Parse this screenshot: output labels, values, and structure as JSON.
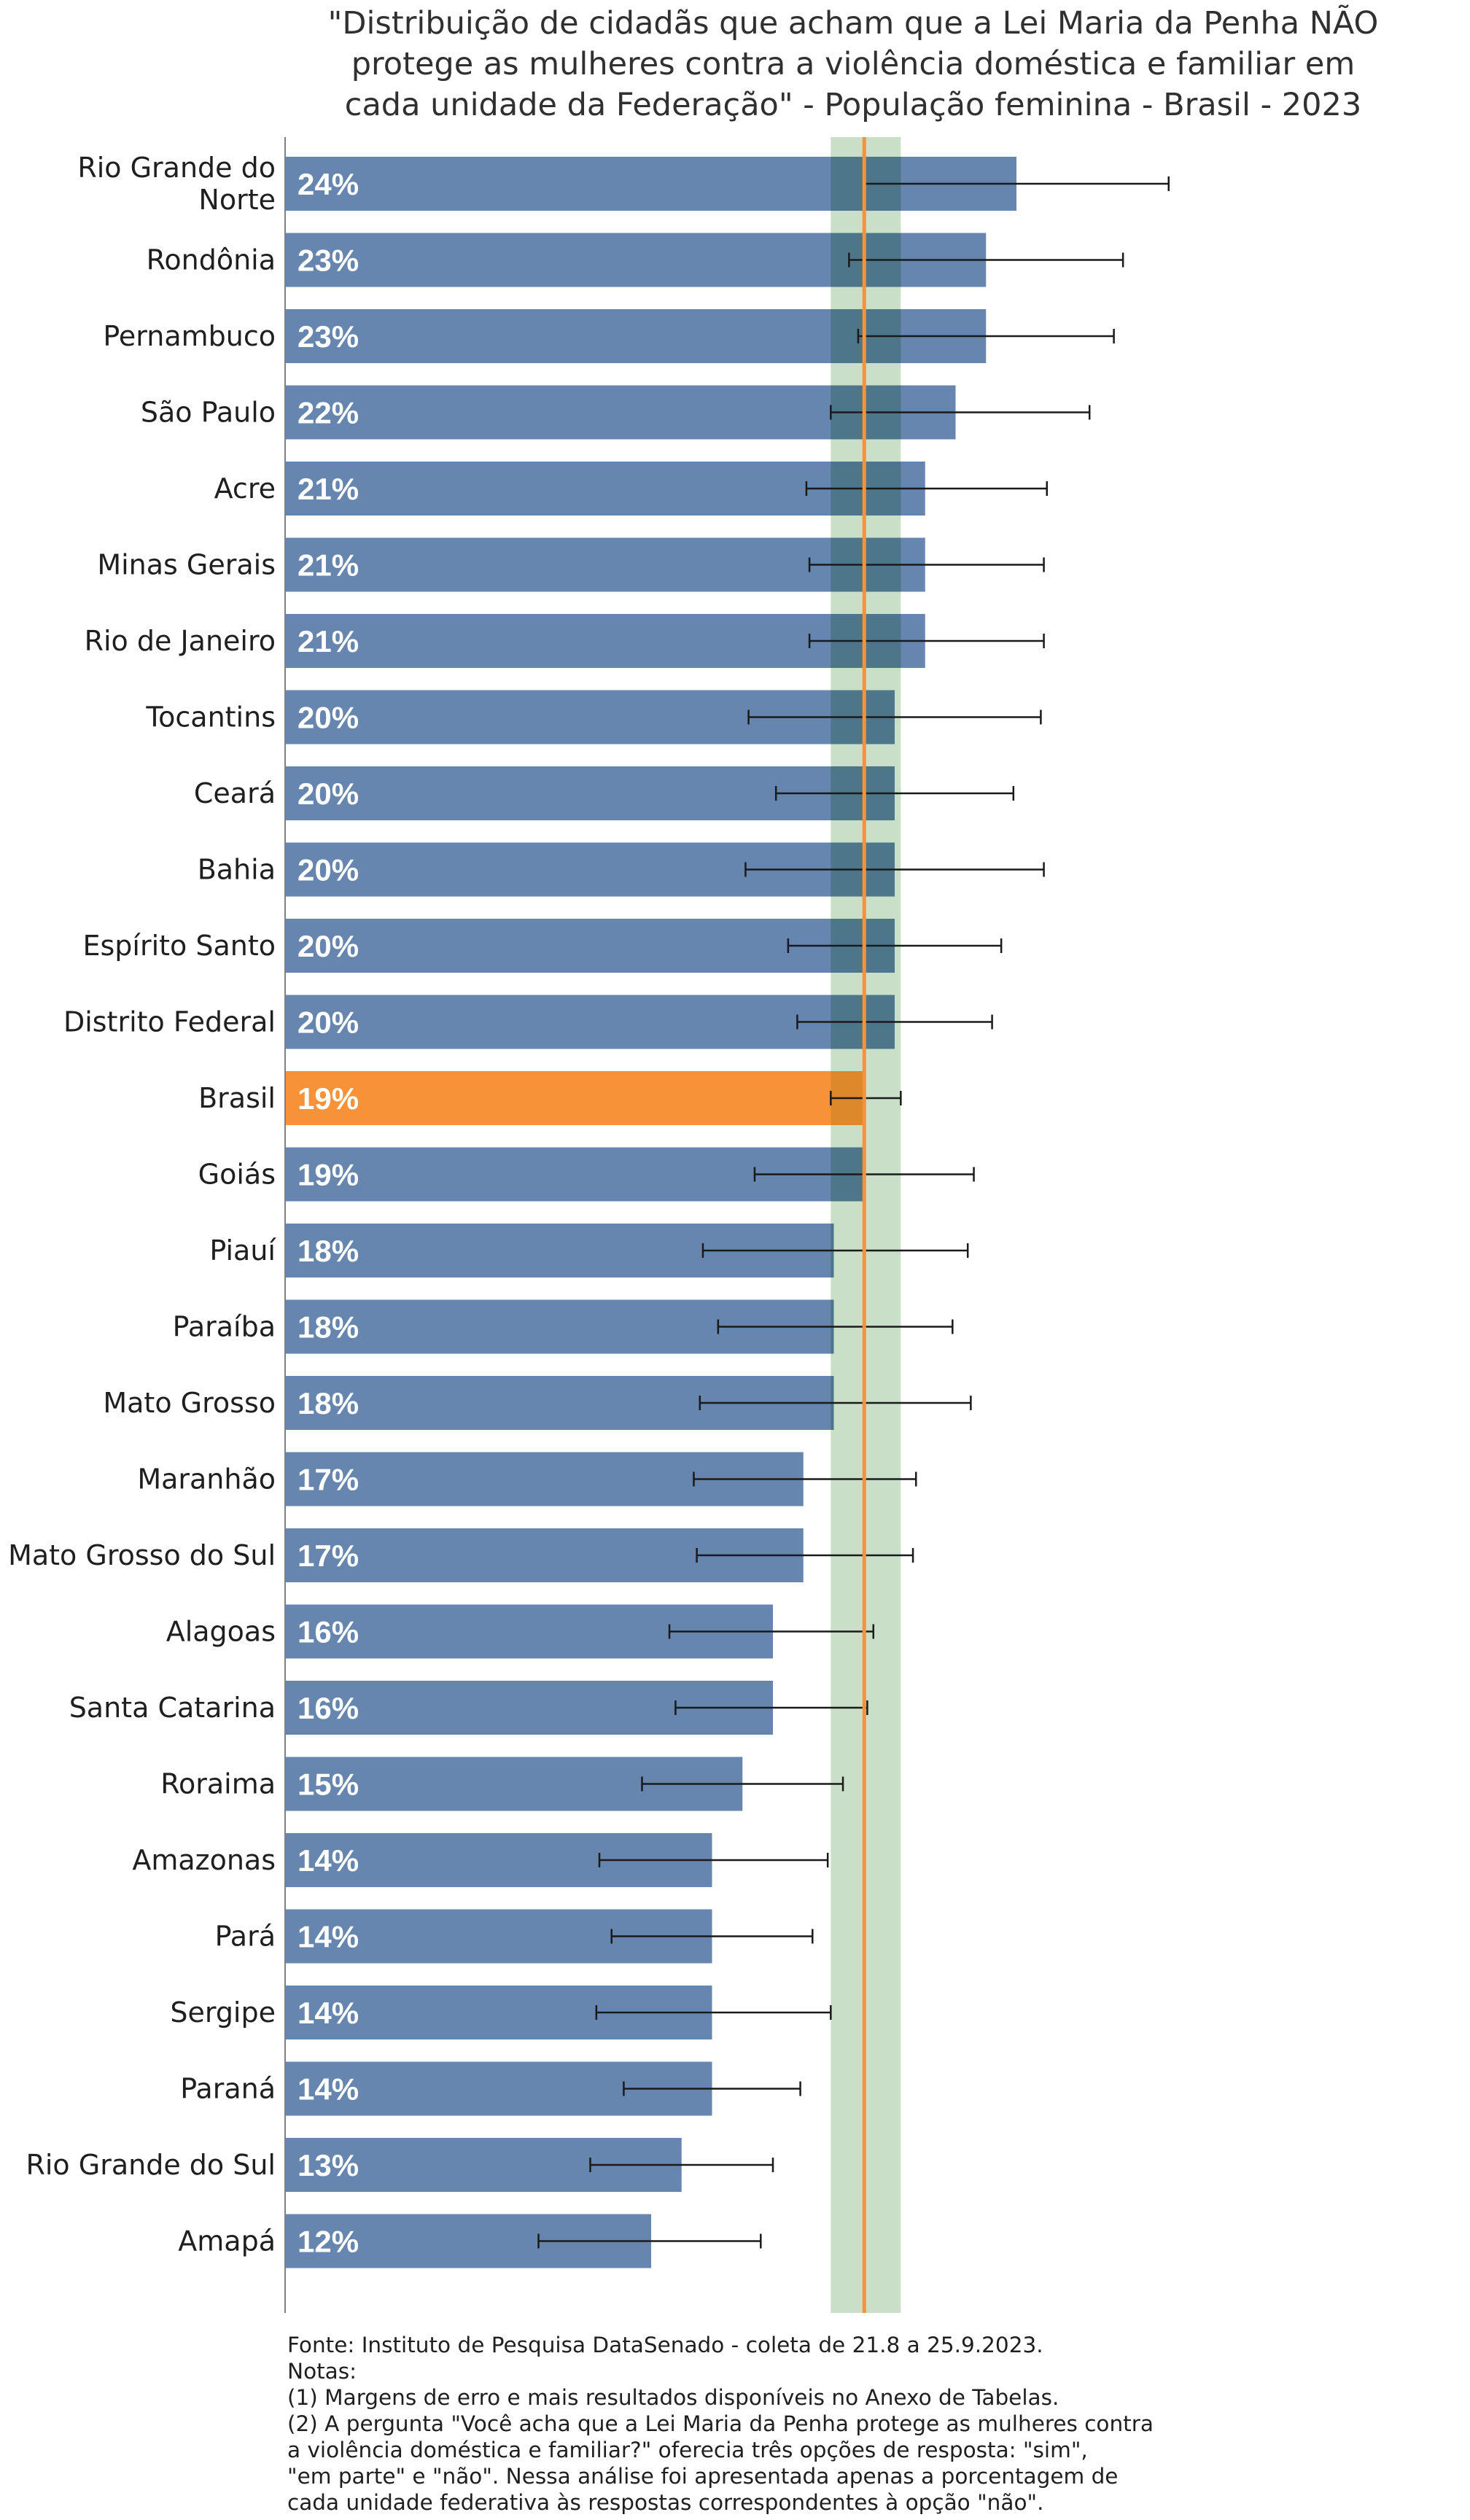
{
  "chart_data": {
    "type": "bar",
    "orientation": "horizontal",
    "title": "\"Distribuição de cidadãs que acham que a Lei Maria da Penha NÃO protege as mulheres contra a violência doméstica e familiar em cada unidade da Federação\" - População feminina - Brasil - 2023",
    "title_lines": [
      "\"Distribuição de cidadãs que acham que a Lei Maria da Penha NÃO",
      "protege as mulheres contra a violência doméstica e familiar em",
      "cada unidade da Federação\" - População feminina - Brasil - 2023"
    ],
    "categories": [
      "Rio Grande do Norte",
      "Rondônia",
      "Pernambuco",
      "São Paulo",
      "Acre",
      "Minas Gerais",
      "Rio de Janeiro",
      "Tocantins",
      "Ceará",
      "Bahia",
      "Espírito Santo",
      "Distrito Federal",
      "Brasil",
      "Goiás",
      "Piauí",
      "Paraíba",
      "Mato Grosso",
      "Maranhão",
      "Mato Grosso do Sul",
      "Alagoas",
      "Santa Catarina",
      "Roraima",
      "Amazonas",
      "Pará",
      "Sergipe",
      "Paraná",
      "Rio Grande do Sul",
      "Amapá"
    ],
    "category_label_lines": [
      [
        "Rio Grande do",
        "Norte"
      ],
      [
        "Rondônia"
      ],
      [
        "Pernambuco"
      ],
      [
        "São Paulo"
      ],
      [
        "Acre"
      ],
      [
        "Minas Gerais"
      ],
      [
        "Rio de Janeiro"
      ],
      [
        "Tocantins"
      ],
      [
        "Ceará"
      ],
      [
        "Bahia"
      ],
      [
        "Espírito Santo"
      ],
      [
        "Distrito Federal"
      ],
      [
        "Brasil"
      ],
      [
        "Goiás"
      ],
      [
        "Piauí"
      ],
      [
        "Paraíba"
      ],
      [
        "Mato Grosso"
      ],
      [
        "Maranhão"
      ],
      [
        "Mato Grosso do Sul"
      ],
      [
        "Alagoas"
      ],
      [
        "Santa Catarina"
      ],
      [
        "Roraima"
      ],
      [
        "Amazonas"
      ],
      [
        "Pará"
      ],
      [
        "Sergipe"
      ],
      [
        "Paraná"
      ],
      [
        "Rio Grande do Sul"
      ],
      [
        "Amapá"
      ]
    ],
    "values": [
      24,
      23,
      23,
      22,
      21,
      21,
      21,
      20,
      20,
      20,
      20,
      20,
      19,
      19,
      18,
      18,
      18,
      17,
      17,
      16,
      16,
      15,
      14,
      14,
      14,
      14,
      13,
      12
    ],
    "value_labels": [
      "24%",
      "23%",
      "23%",
      "22%",
      "21%",
      "21%",
      "21%",
      "20%",
      "20%",
      "20%",
      "20%",
      "20%",
      "19%",
      "19%",
      "18%",
      "18%",
      "18%",
      "17%",
      "17%",
      "16%",
      "16%",
      "15%",
      "14%",
      "14%",
      "14%",
      "14%",
      "13%",
      "12%"
    ],
    "error_low": [
      19.0,
      18.5,
      18.8,
      17.9,
      17.1,
      17.2,
      17.2,
      15.2,
      16.1,
      15.1,
      16.5,
      16.8,
      17.9,
      15.4,
      13.7,
      14.2,
      13.6,
      13.4,
      13.5,
      12.6,
      12.8,
      11.7,
      10.3,
      10.7,
      10.2,
      11.1,
      10.0,
      8.3
    ],
    "error_high": [
      29.0,
      27.5,
      27.2,
      26.4,
      25.0,
      24.9,
      24.9,
      24.8,
      23.9,
      24.9,
      23.5,
      23.2,
      20.2,
      22.6,
      22.4,
      21.9,
      22.5,
      20.7,
      20.6,
      19.3,
      19.1,
      18.3,
      17.8,
      17.3,
      17.9,
      16.9,
      16.0,
      15.6
    ],
    "highlight_category": "Brasil",
    "reference_value": 19.0,
    "reference_band": [
      17.9,
      20.2
    ],
    "xlim": [
      0,
      32
    ],
    "colors": {
      "bar": "#6686af",
      "highlight_bar": "#f79238",
      "reference_line": "#f79238",
      "reference_band": "#c9dfc7",
      "error_bar": "#1a1a1a",
      "value_label": "#ffffff"
    },
    "grid": false,
    "legend": "none"
  },
  "footnotes": [
    "Fonte: Instituto de Pesquisa DataSenado - coleta de 21.8 a 25.9.2023.",
    "Notas:",
    "(1) Margens de erro e mais resultados disponíveis no Anexo de Tabelas.",
    "(2) A pergunta \"Você acha que a Lei Maria da Penha protege as mulheres contra",
    "a violência doméstica e familiar?\" oferecia três opções de resposta: \"sim\",",
    "\"em parte\" e \"não\". Nessa análise foi apresentada apenas a porcentagem de",
    "cada unidade federativa às respostas correspondentes à opção \"não\"."
  ]
}
